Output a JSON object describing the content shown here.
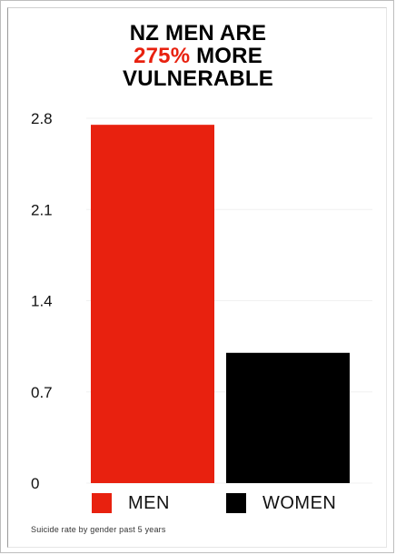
{
  "chart_data": {
    "type": "bar",
    "title_lines": [
      {
        "parts": [
          {
            "text": "NZ MEN ARE",
            "highlight": false
          }
        ]
      },
      {
        "parts": [
          {
            "text": "275%",
            "highlight": true
          },
          {
            "text": " MORE",
            "highlight": false
          }
        ]
      },
      {
        "parts": [
          {
            "text": "VULNERABLE",
            "highlight": false
          }
        ]
      }
    ],
    "categories": [
      "MEN",
      "WOMEN"
    ],
    "values": [
      2.75,
      1.0
    ],
    "colors": [
      "#e8210f",
      "#000000"
    ],
    "ylim": [
      0,
      2.8
    ],
    "yticks": [
      "0",
      "0.7",
      "1.4",
      "2.1",
      "2.8"
    ],
    "grid": true,
    "legend_position": "bottom",
    "caption": "Suicide rate by gender past 5 years"
  }
}
